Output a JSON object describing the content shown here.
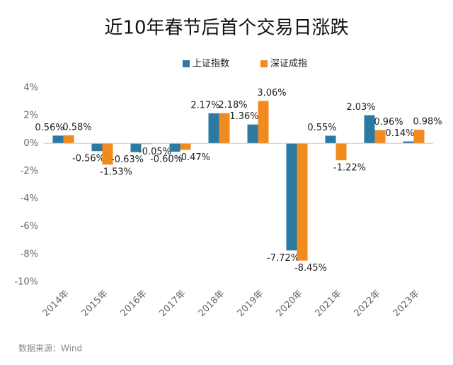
{
  "chart_data": {
    "type": "bar",
    "title": "近10年春节后首个交易日涨跌",
    "note": "数据来源：Wind",
    "categories": [
      "2014年",
      "2015年",
      "2016年",
      "2017年",
      "2018年",
      "2019年",
      "2020年",
      "2021年",
      "2022年",
      "2023年"
    ],
    "series": [
      {
        "name": "上证指数",
        "color": "#2a7aa3",
        "values": [
          0.56,
          -0.56,
          -0.63,
          -0.6,
          2.17,
          1.36,
          -7.72,
          0.55,
          2.03,
          0.14
        ],
        "value_labels": [
          "0.56%",
          "-0.56%",
          "-0.63%",
          "-0.60%",
          "2.17%",
          "1.36%",
          "-7.72%",
          "0.55%",
          "2.03%",
          "0.14%"
        ]
      },
      {
        "name": "深证成指",
        "color": "#f28b1d",
        "values": [
          0.58,
          -1.53,
          -0.05,
          -0.47,
          2.18,
          3.06,
          -8.45,
          -1.22,
          0.96,
          0.98
        ],
        "value_labels": [
          "0.58%",
          "-1.53%",
          "-0.05%",
          "-0.47%",
          "2.18%",
          "3.06%",
          "-8.45%",
          "-1.22%",
          "0.96%",
          "0.98%"
        ]
      }
    ],
    "ylim": [
      -10,
      4
    ],
    "yticks": [
      {
        "value": -10,
        "label": "-10%"
      },
      {
        "value": -8,
        "label": "-8%"
      },
      {
        "value": -6,
        "label": "-6%"
      },
      {
        "value": -4,
        "label": "-4%"
      },
      {
        "value": -2,
        "label": "-2%"
      },
      {
        "value": 0,
        "label": "0%"
      },
      {
        "value": 2,
        "label": "2%"
      },
      {
        "value": 4,
        "label": "4%"
      }
    ],
    "grid": false,
    "legend": "top"
  }
}
